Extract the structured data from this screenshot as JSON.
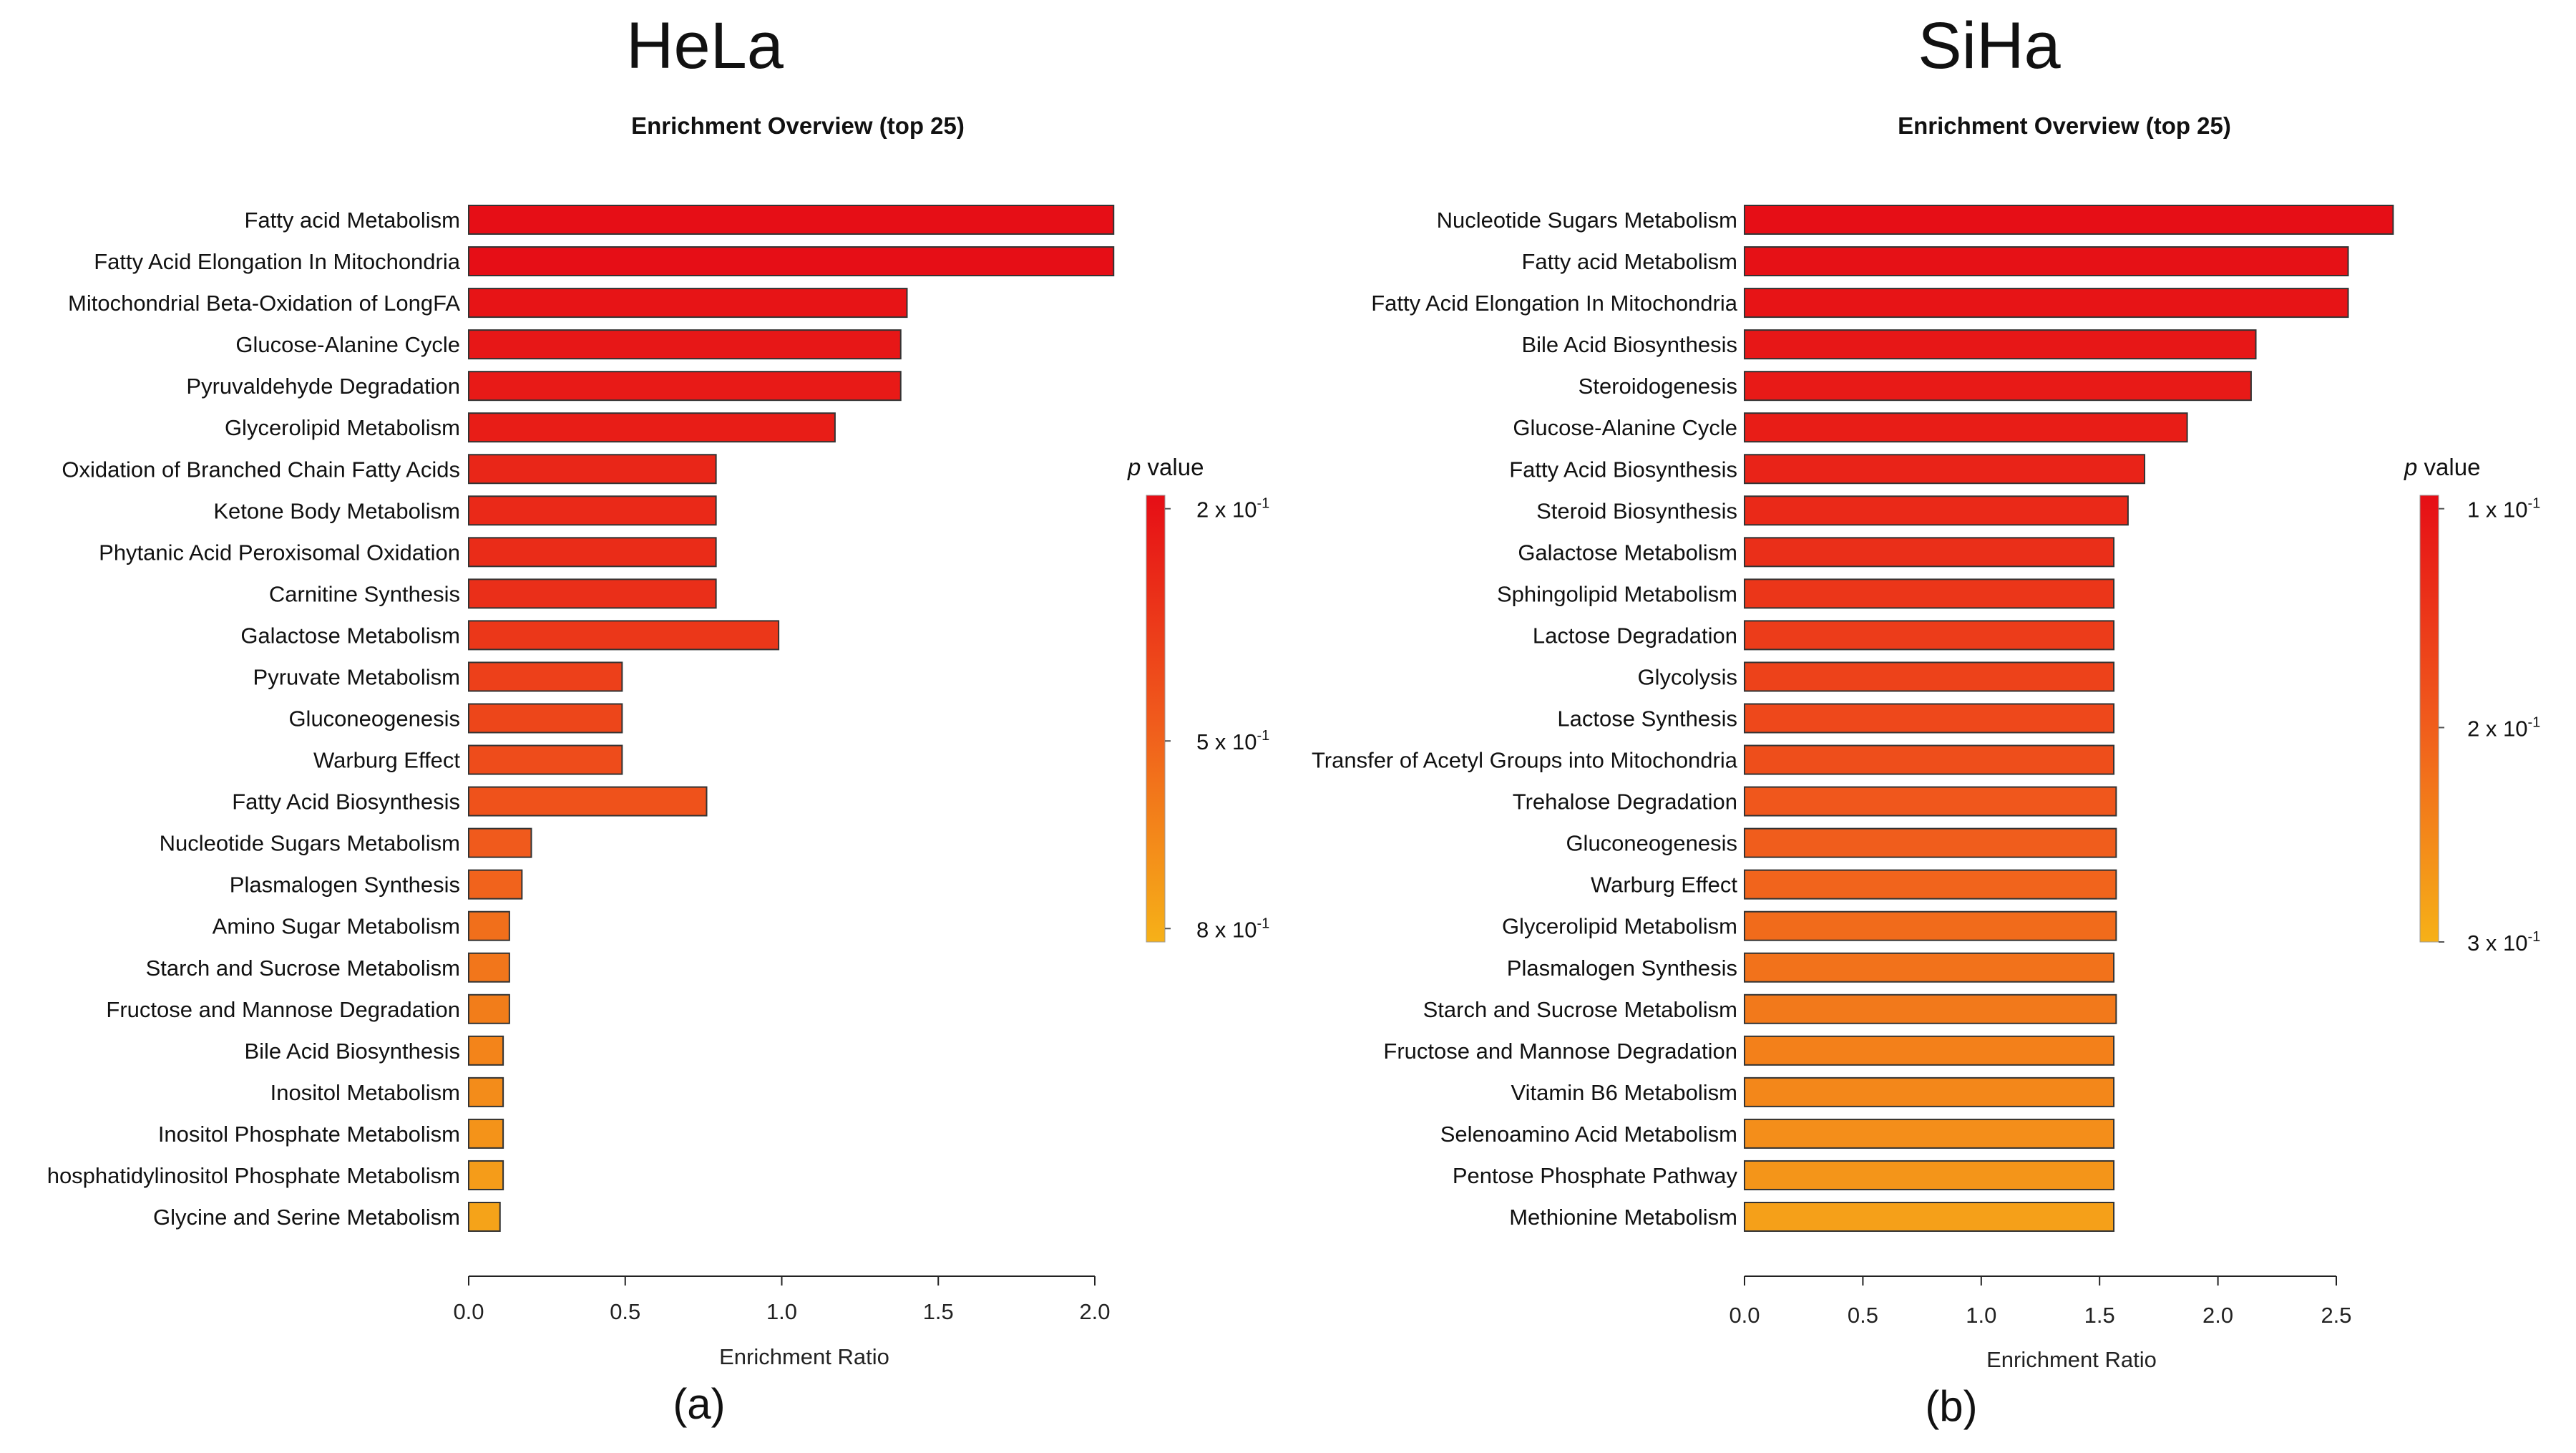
{
  "chart_data": [
    {
      "panel": "a",
      "cell_line": "HeLa",
      "type": "bar",
      "orientation": "horizontal",
      "title": "Enrichment Overview (top 25)",
      "xlabel": "Enrichment Ratio",
      "xlim": [
        0,
        2.0
      ],
      "xticks": [
        0.0,
        0.5,
        1.0,
        1.5,
        2.0
      ],
      "xtick_labels": [
        "0.0",
        "0.5",
        "1.0",
        "1.5",
        "2.0"
      ],
      "categories": [
        "Fatty acid Metabolism",
        "Fatty Acid Elongation In Mitochondria",
        "Mitochondrial Beta-Oxidation of LongFA",
        "Glucose-Alanine Cycle",
        "Pyruvaldehyde Degradation",
        "Glycerolipid Metabolism",
        "Oxidation of Branched Chain Fatty Acids",
        "Ketone Body Metabolism",
        "Phytanic Acid Peroxisomal Oxidation",
        "Carnitine Synthesis",
        "Galactose Metabolism",
        "Pyruvate Metabolism",
        "Gluconeogenesis",
        "Warburg Effect",
        "Fatty Acid Biosynthesis",
        "Nucleotide Sugars Metabolism",
        "Plasmalogen Synthesis",
        "Amino Sugar Metabolism",
        "Starch and Sucrose Metabolism",
        "Fructose and Mannose Degradation",
        "Bile Acid Biosynthesis",
        "Inositol Metabolism",
        "Inositol Phosphate Metabolism",
        "hosphatidylinositol Phosphate Metabolism",
        "Glycine and Serine Metabolism"
      ],
      "values": [
        2.06,
        2.06,
        1.4,
        1.38,
        1.38,
        1.17,
        0.79,
        0.79,
        0.79,
        0.79,
        0.99,
        0.49,
        0.49,
        0.49,
        0.76,
        0.2,
        0.17,
        0.13,
        0.13,
        0.13,
        0.11,
        0.11,
        0.11,
        0.11,
        0.1
      ],
      "color_t": [
        0.0,
        0.0,
        0.04,
        0.06,
        0.08,
        0.1,
        0.16,
        0.18,
        0.2,
        0.22,
        0.27,
        0.33,
        0.37,
        0.41,
        0.45,
        0.5,
        0.55,
        0.62,
        0.66,
        0.7,
        0.74,
        0.79,
        0.83,
        0.88,
        0.92
      ],
      "legend": {
        "label_italic": "p",
        "label_rest": " value",
        "tick_labels": [
          "2 x 10",
          "5 x 10",
          "8 x 10"
        ],
        "tick_exponent": "-1",
        "tick_positions": [
          0.03,
          0.55,
          0.97
        ]
      },
      "caption": "(a)"
    },
    {
      "panel": "b",
      "cell_line": "SiHa",
      "type": "bar",
      "orientation": "horizontal",
      "title": "Enrichment Overview (top 25)",
      "xlabel": "Enrichment Ratio",
      "xlim": [
        0,
        2.5
      ],
      "xticks": [
        0.0,
        0.5,
        1.0,
        1.5,
        2.0,
        2.5
      ],
      "xtick_labels": [
        "0.0",
        "0.5",
        "1.0",
        "1.5",
        "2.0",
        "2.5"
      ],
      "categories": [
        "Nucleotide Sugars Metabolism",
        "Fatty acid Metabolism",
        "Fatty Acid Elongation In Mitochondria",
        "Bile Acid Biosynthesis",
        "Steroidogenesis",
        "Glucose-Alanine Cycle",
        "Fatty Acid Biosynthesis",
        "Steroid Biosynthesis",
        "Galactose Metabolism",
        "Sphingolipid Metabolism",
        "Lactose Degradation",
        "Glycolysis",
        "Lactose Synthesis",
        "Transfer of Acetyl Groups into Mitochondria",
        "Trehalose Degradation",
        "Gluconeogenesis",
        "Warburg Effect",
        "Glycerolipid Metabolism",
        "Plasmalogen Synthesis",
        "Starch and Sucrose Metabolism",
        "Fructose and Mannose Degradation",
        "Vitamin B6 Metabolism",
        "Selenoamino Acid Metabolism",
        "Pentose Phosphate Pathway",
        "Methionine Metabolism"
      ],
      "values": [
        2.74,
        2.55,
        2.55,
        2.16,
        2.14,
        1.87,
        1.69,
        1.62,
        1.56,
        1.56,
        1.56,
        1.56,
        1.56,
        1.56,
        1.57,
        1.57,
        1.57,
        1.57,
        1.56,
        1.57,
        1.56,
        1.56,
        1.56,
        1.56,
        1.56
      ],
      "color_t": [
        0.0,
        0.02,
        0.04,
        0.06,
        0.08,
        0.1,
        0.14,
        0.18,
        0.22,
        0.26,
        0.3,
        0.34,
        0.38,
        0.42,
        0.48,
        0.52,
        0.56,
        0.6,
        0.64,
        0.68,
        0.72,
        0.76,
        0.8,
        0.84,
        0.9
      ],
      "legend": {
        "label_italic": "p",
        "label_rest": " value",
        "tick_labels": [
          "1 x 10",
          "2 x 10",
          "3 x 10"
        ],
        "tick_exponent": "-1",
        "tick_positions": [
          0.03,
          0.52,
          1.0
        ]
      },
      "caption": "(b)"
    }
  ],
  "colors": {
    "scale_top": "#e60e16",
    "scale_bottom": "#f6b118",
    "axis": "#222222",
    "bar_outline": "#333333",
    "text": "#111111"
  }
}
